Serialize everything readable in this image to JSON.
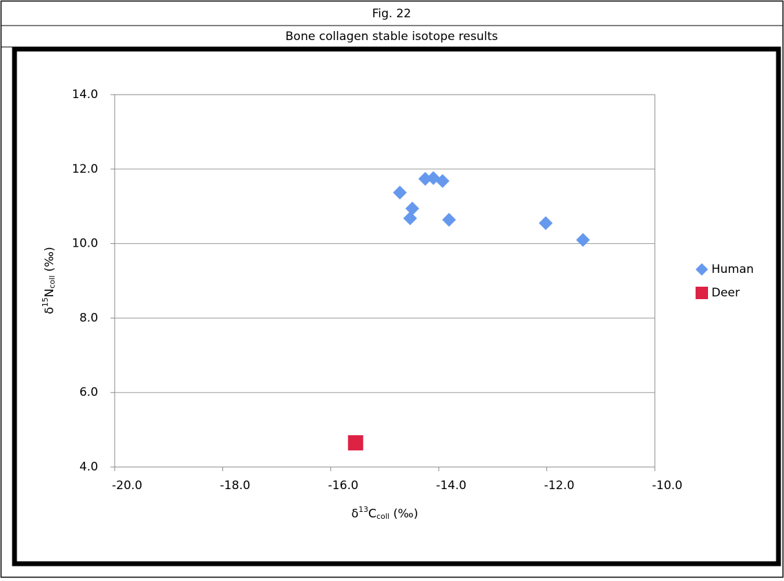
{
  "header": {
    "figure": "Fig. 22",
    "title": "Bone collagen stable isotope results"
  },
  "chart_data": {
    "type": "scatter",
    "x_label_parts": [
      "δ",
      "13",
      "C",
      "coll",
      " (‰)"
    ],
    "y_label_parts": [
      "δ",
      "15",
      "N",
      "coll",
      " (‰)"
    ],
    "xlim": [
      -20,
      -10
    ],
    "xticks": [
      {
        "value": -20,
        "label": "-20.0"
      },
      {
        "value": -18,
        "label": "-18.0"
      },
      {
        "value": -16,
        "label": "-16.0"
      },
      {
        "value": -14,
        "label": "-14.0"
      },
      {
        "value": -12,
        "label": "-12.0"
      },
      {
        "value": -10,
        "label": "-10.0"
      }
    ],
    "ylim": [
      4,
      14
    ],
    "yticks": [
      {
        "value": 4,
        "label": "4.0"
      },
      {
        "value": 6,
        "label": "6.0"
      },
      {
        "value": 8,
        "label": "8.0"
      },
      {
        "value": 10,
        "label": "10.0"
      },
      {
        "value": 12,
        "label": "12.0"
      },
      {
        "value": 14,
        "label": "14.0"
      }
    ],
    "grid": true,
    "legend": "right",
    "series": [
      {
        "name": "Human",
        "color": "#6699ee",
        "marker": "diamond",
        "x": [
          -14.72,
          -14.49,
          -14.53,
          -14.25,
          -14.1,
          -13.93,
          -13.81,
          -12.02,
          -11.33
        ],
        "values": [
          11.37,
          10.94,
          10.68,
          11.74,
          11.76,
          11.68,
          10.64,
          10.55,
          10.1
        ]
      },
      {
        "name": "Deer",
        "color": "#dd2244",
        "marker": "square",
        "x": [
          -15.54
        ],
        "values": [
          4.65
        ]
      }
    ]
  }
}
